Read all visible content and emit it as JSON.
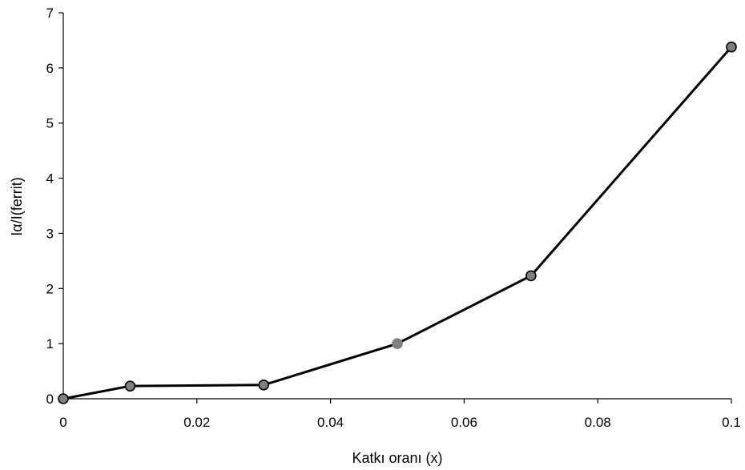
{
  "chart_data": {
    "type": "line",
    "title": "",
    "xlabel": "Katkı oranı (x)",
    "ylabel": "Iα/I(ferrit)",
    "xlim": [
      0,
      0.1
    ],
    "ylim": [
      0,
      7
    ],
    "x_ticks": [
      0,
      0.02,
      0.04,
      0.06,
      0.08,
      0.1
    ],
    "x_tick_labels": [
      "0",
      "0.02",
      "0.04",
      "0.06",
      "0.08",
      "0.1"
    ],
    "y_ticks": [
      0,
      1,
      2,
      3,
      4,
      5,
      6,
      7
    ],
    "y_tick_labels": [
      "0",
      "1",
      "2",
      "3",
      "4",
      "5",
      "6",
      "7"
    ],
    "grid": false,
    "series": [
      {
        "x": [
          0,
          0.01,
          0.03,
          0.05,
          0.07,
          0.1
        ],
        "y": [
          0,
          0.23,
          0.25,
          1.0,
          2.23,
          6.38
        ]
      }
    ],
    "colors": {
      "line": "#000000",
      "marker_fill": "#7f7f7f",
      "marker_edge": "#000000",
      "axis": "#000000"
    }
  }
}
